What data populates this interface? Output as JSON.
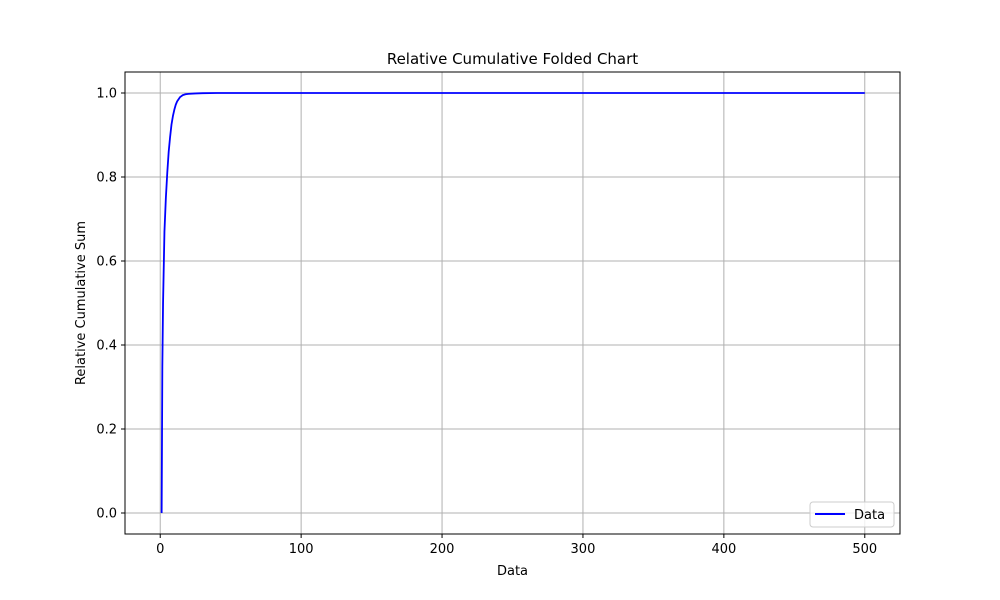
{
  "chart_data": {
    "type": "line",
    "title": "Relative Cumulative Folded Chart",
    "xlabel": "Data",
    "ylabel": "Relative Cumulative Sum",
    "xlim": [
      -25,
      525
    ],
    "ylim": [
      -0.05,
      1.05
    ],
    "xticks": [
      0,
      100,
      200,
      300,
      400,
      500
    ],
    "yticks": [
      0.0,
      0.2,
      0.4,
      0.6,
      0.8,
      1.0
    ],
    "xtick_labels": [
      "0",
      "100",
      "200",
      "300",
      "400",
      "500"
    ],
    "ytick_labels": [
      "0.0",
      "0.2",
      "0.4",
      "0.6",
      "0.8",
      "1.0"
    ],
    "grid": true,
    "legend_position": "lower-right",
    "series": [
      {
        "name": "Data",
        "color": "#0000ff",
        "x": [
          1,
          1.5,
          2,
          3,
          4,
          5,
          6,
          7,
          8,
          9,
          10,
          11,
          12,
          14,
          16,
          18,
          20,
          25,
          30,
          40,
          60,
          100,
          200,
          300,
          400,
          500
        ],
        "y": [
          0.0,
          0.35,
          0.5,
          0.67,
          0.75,
          0.81,
          0.86,
          0.895,
          0.925,
          0.945,
          0.96,
          0.972,
          0.98,
          0.99,
          0.995,
          0.997,
          0.998,
          0.999,
          0.9995,
          1.0,
          1.0,
          1.0,
          1.0,
          1.0,
          1.0,
          1.0
        ]
      }
    ]
  }
}
